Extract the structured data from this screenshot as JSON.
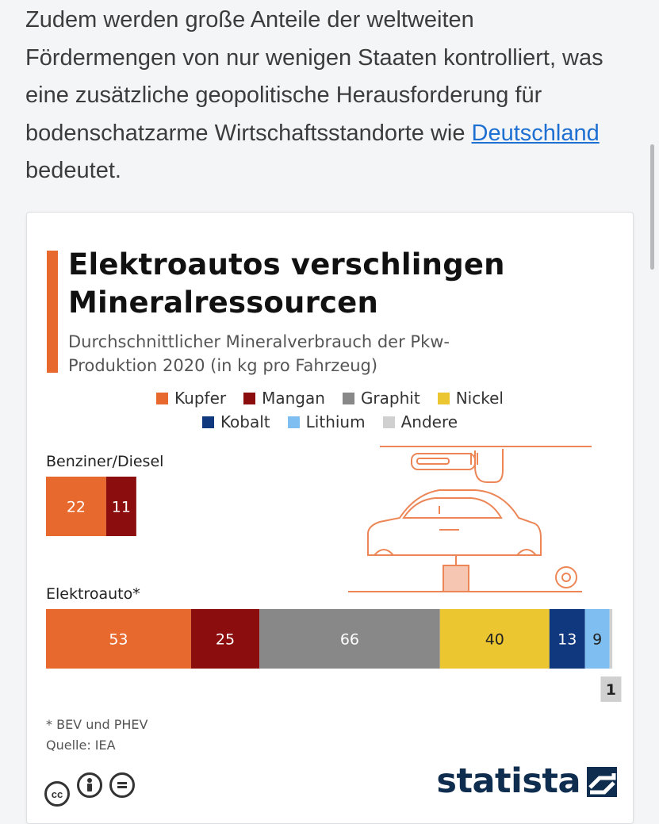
{
  "article": {
    "text_before_link": "Zudem werden große Anteile der weltweiten Fördermengen von nur wenigen Staaten kontrolliert, was eine zusätzliche geopolitische Herausforderung für bodenschatzarme Wirtschaftsstandorte wie ",
    "link_text": "Deutschland",
    "text_after_link": " bedeutet."
  },
  "footer": {
    "footnote": "* BEV und PHEV",
    "source": "Quelle: IEA",
    "brand": "statista",
    "license_icons": [
      "creative-commons-icon",
      "attribution-icon",
      "no-derivatives-icon"
    ]
  },
  "chart_data": {
    "type": "bar",
    "stacked": true,
    "orientation": "horizontal",
    "title": "Elektroautos verschlingen Mineralressourcen",
    "subtitle": "Durchschnittlicher Mineralverbrauch der Pkw-Produktion 2020 (in kg pro Fahrzeug)",
    "legend_placement": "top",
    "categories": [
      "Benziner/Diesel",
      "Elektroauto*"
    ],
    "series": [
      {
        "name": "Kupfer",
        "color": "#e8692e",
        "values": [
          22,
          53
        ]
      },
      {
        "name": "Mangan",
        "color": "#8b0d0d",
        "values": [
          11,
          25
        ]
      },
      {
        "name": "Graphit",
        "color": "#888888",
        "values": [
          0,
          66
        ]
      },
      {
        "name": "Nickel",
        "color": "#ebc631",
        "values": [
          0,
          40
        ]
      },
      {
        "name": "Kobalt",
        "color": "#10387e",
        "values": [
          0,
          13
        ]
      },
      {
        "name": "Lithium",
        "color": "#7fbef0",
        "values": [
          0,
          9
        ]
      },
      {
        "name": "Andere",
        "color": "#d0d0d0",
        "values": [
          0,
          1
        ]
      }
    ]
  }
}
